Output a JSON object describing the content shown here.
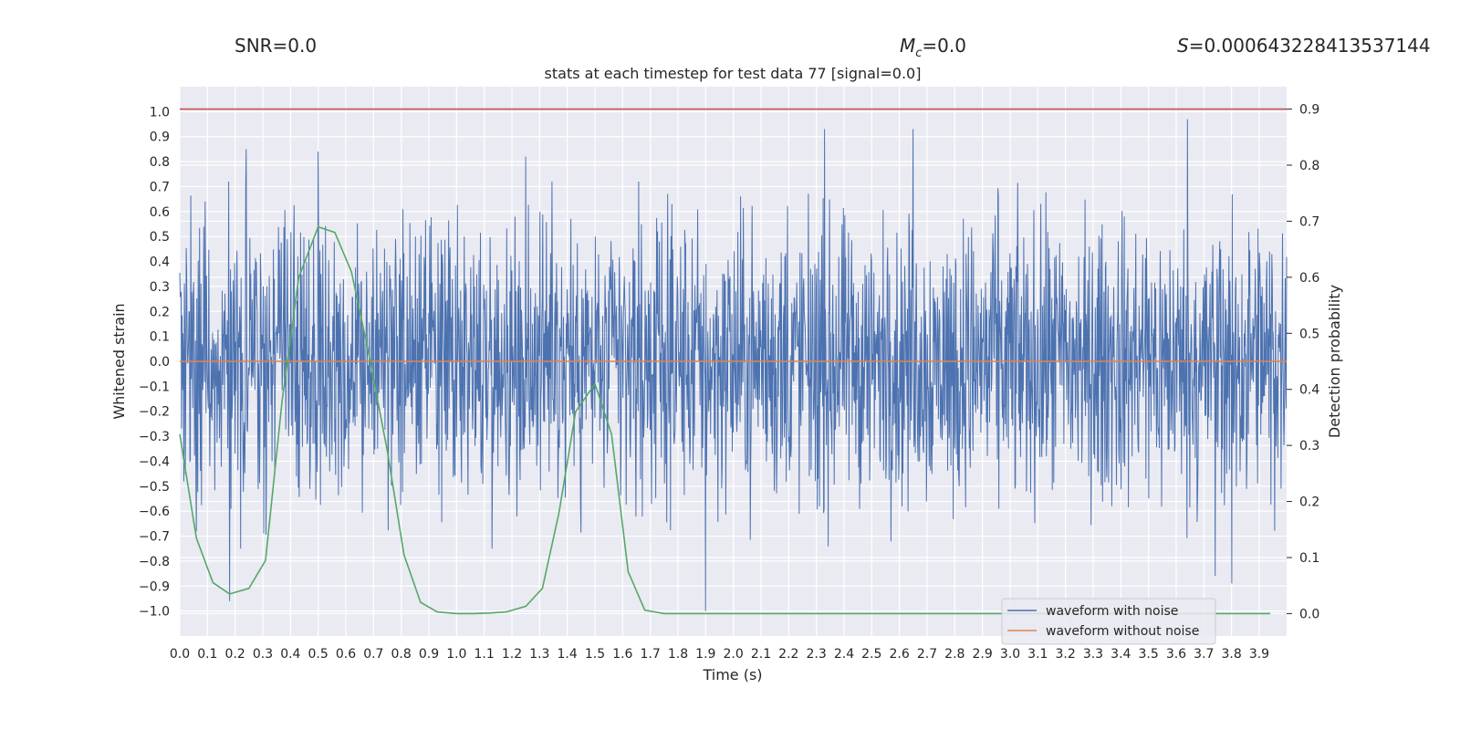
{
  "header": {
    "snr_label": "SNR=0.0",
    "mc_symbol": "M",
    "mc_sub": "c",
    "mc_value": "=0.0",
    "s_symbol": "S",
    "s_value": "=0.000643228413537144"
  },
  "chart_data": {
    "type": "line",
    "title": "stats at each timestep for test data 77 [signal=0.0]",
    "xlabel": "Time (s)",
    "ylabel": "Whitened strain",
    "y2label": "Detection probability",
    "xlim": [
      0.0,
      3.999
    ],
    "ylim": [
      -1.1,
      1.1
    ],
    "y2lim": [
      -0.04,
      0.94
    ],
    "xticks": [
      "0.0",
      "0.1",
      "0.2",
      "0.3",
      "0.4",
      "0.5",
      "0.6",
      "0.7",
      "0.8",
      "0.9",
      "1.0",
      "1.1",
      "1.2",
      "1.3",
      "1.4",
      "1.5",
      "1.6",
      "1.7",
      "1.8",
      "1.9",
      "2.0",
      "2.1",
      "2.2",
      "2.3",
      "2.4",
      "2.5",
      "2.6",
      "2.7",
      "2.8",
      "2.9",
      "3.0",
      "3.1",
      "3.2",
      "3.3",
      "3.4",
      "3.5",
      "3.6",
      "3.7",
      "3.8",
      "3.9"
    ],
    "yticks": [
      "1.0",
      "0.9",
      "0.8",
      "0.7",
      "0.6",
      "0.5",
      "0.4",
      "0.3",
      "0.2",
      "0.1",
      "0.0",
      "−0.1",
      "−0.2",
      "−0.3",
      "−0.4",
      "−0.5",
      "−0.6",
      "−0.7",
      "−0.8",
      "−0.9",
      "−1.0"
    ],
    "y2ticks": [
      "0.9",
      "0.8",
      "0.7",
      "0.6",
      "0.5",
      "0.4",
      "0.3",
      "0.2",
      "0.1",
      "0.0"
    ],
    "colors": {
      "noise": "#4c72b0",
      "clean": "#dd8452",
      "prob": "#55a868",
      "threshold": "#c44e52",
      "bg": "#eaeaf2"
    },
    "series": [
      {
        "name": "waveform with noise",
        "axis": "left",
        "note": "dense noise trace, approx. ±0.5 envelope with spikes up to 0.97 / down to -1.0",
        "peaks": [
          {
            "x": 0.18,
            "y": -0.96
          },
          {
            "x": 0.24,
            "y": 0.85
          },
          {
            "x": 0.5,
            "y": 0.84
          },
          {
            "x": 1.25,
            "y": 0.82
          },
          {
            "x": 1.9,
            "y": -1.0
          },
          {
            "x": 2.33,
            "y": 0.93
          },
          {
            "x": 2.65,
            "y": 0.93
          },
          {
            "x": 3.64,
            "y": 0.97
          },
          {
            "x": 3.74,
            "y": -0.86
          },
          {
            "x": 3.8,
            "y": -0.89
          }
        ]
      },
      {
        "name": "waveform without noise",
        "axis": "left",
        "x": [
          0.0,
          3.999
        ],
        "y": [
          0.0,
          0.0
        ]
      },
      {
        "name": "detection probability",
        "axis": "right",
        "x": [
          0.0,
          0.06,
          0.12,
          0.18,
          0.25,
          0.31,
          0.37,
          0.43,
          0.5,
          0.56,
          0.62,
          0.68,
          0.75,
          0.81,
          0.87,
          0.93,
          1.0,
          1.06,
          1.12,
          1.18,
          1.25,
          1.31,
          1.37,
          1.43,
          1.5,
          1.56,
          1.62,
          1.68,
          1.75,
          1.81,
          1.87,
          1.93,
          2.0,
          2.5,
          3.0,
          3.5,
          3.94
        ],
        "y": [
          0.32,
          0.135,
          0.055,
          0.035,
          0.045,
          0.095,
          0.38,
          0.6,
          0.69,
          0.68,
          0.61,
          0.47,
          0.29,
          0.105,
          0.02,
          0.003,
          0.0,
          0.0,
          0.001,
          0.003,
          0.013,
          0.045,
          0.18,
          0.36,
          0.41,
          0.32,
          0.075,
          0.006,
          0.0,
          0.0,
          0.0,
          0.0,
          0.0,
          0.0,
          0.0,
          0.0,
          0.0
        ]
      },
      {
        "name": "threshold",
        "axis": "right",
        "x": [
          0.0,
          3.999
        ],
        "y": [
          0.9,
          0.9
        ]
      }
    ],
    "legend": {
      "position": "bottom-right",
      "entries": [
        "waveform with noise",
        "waveform without noise"
      ]
    }
  }
}
